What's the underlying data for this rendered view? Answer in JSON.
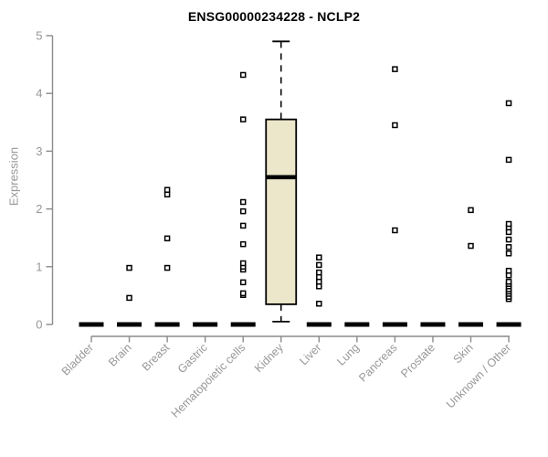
{
  "chart_data": {
    "type": "boxplot",
    "title": "ENSG00000234228 - NCLP2",
    "ylabel": "Expression",
    "ylim": [
      0,
      5
    ],
    "yticks": [
      0,
      1,
      2,
      3,
      4,
      5
    ],
    "grid": false,
    "legend": false,
    "categories": [
      "Bladder",
      "Brain",
      "Breast",
      "Gastric",
      "Hematopoietic cells",
      "Kidney",
      "Liver",
      "Lung",
      "Pancreas",
      "Prostate",
      "Skin",
      "Unknown / Other"
    ],
    "boxes": [
      {
        "category": "Bladder",
        "median": 0,
        "q1": 0,
        "q3": 0,
        "whisker_low": 0,
        "whisker_high": 0,
        "outliers": []
      },
      {
        "category": "Brain",
        "median": 0,
        "q1": 0,
        "q3": 0,
        "whisker_low": 0,
        "whisker_high": 0,
        "outliers": [
          0.46,
          0.98
        ]
      },
      {
        "category": "Breast",
        "median": 0,
        "q1": 0,
        "q3": 0,
        "whisker_low": 0,
        "whisker_high": 0,
        "outliers": [
          0.98,
          1.49,
          2.25,
          2.33
        ]
      },
      {
        "category": "Gastric",
        "median": 0,
        "q1": 0,
        "q3": 0,
        "whisker_low": 0,
        "whisker_high": 0,
        "outliers": []
      },
      {
        "category": "Hematopoietic cells",
        "median": 0,
        "q1": 0,
        "q3": 0,
        "whisker_low": 0,
        "whisker_high": 0,
        "outliers": [
          0.51,
          0.54,
          0.73,
          0.95,
          1.0,
          1.06,
          1.39,
          1.71,
          1.96,
          2.12,
          3.55,
          4.32
        ]
      },
      {
        "category": "Kidney",
        "median": 2.55,
        "q1": 0.35,
        "q3": 3.55,
        "whisker_low": 0.05,
        "whisker_high": 4.9,
        "outliers": []
      },
      {
        "category": "Liver",
        "median": 0,
        "q1": 0,
        "q3": 0,
        "whisker_low": 0,
        "whisker_high": 0,
        "outliers": [
          0.36,
          0.66,
          0.74,
          0.82,
          0.9,
          1.03,
          1.16
        ]
      },
      {
        "category": "Lung",
        "median": 0,
        "q1": 0,
        "q3": 0,
        "whisker_low": 0,
        "whisker_high": 0,
        "outliers": []
      },
      {
        "category": "Pancreas",
        "median": 0,
        "q1": 0,
        "q3": 0,
        "whisker_low": 0,
        "whisker_high": 0,
        "outliers": [
          1.63,
          3.45,
          4.42
        ]
      },
      {
        "category": "Prostate",
        "median": 0,
        "q1": 0,
        "q3": 0,
        "whisker_low": 0,
        "whisker_high": 0,
        "outliers": []
      },
      {
        "category": "Skin",
        "median": 0,
        "q1": 0,
        "q3": 0,
        "whisker_low": 0,
        "whisker_high": 0,
        "outliers": [
          1.36,
          1.98
        ]
      },
      {
        "category": "Unknown / Other",
        "median": 0,
        "q1": 0,
        "q3": 0,
        "whisker_low": 0,
        "whisker_high": 0,
        "outliers": [
          0.44,
          0.48,
          0.53,
          0.57,
          0.61,
          0.66,
          0.7,
          0.74,
          0.85,
          0.93,
          1.23,
          1.34,
          1.47,
          1.6,
          1.68,
          1.74,
          2.85,
          3.83
        ]
      }
    ],
    "colors": {
      "box_fill": "#ECE6CA",
      "box_stroke": "#000000",
      "median": "#000000",
      "axis": "#8A8A8A",
      "tick_label": "#979797",
      "title": "#000000",
      "background": "#FFFFFF"
    }
  }
}
